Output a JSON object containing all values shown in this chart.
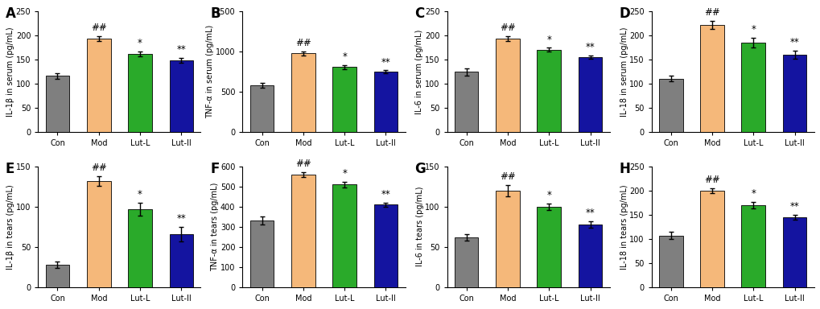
{
  "panels": [
    {
      "label": "A",
      "ylabel": "IL-1β in serum (pg/mL)",
      "ylim": [
        0,
        250
      ],
      "yticks": [
        0,
        50,
        100,
        150,
        200,
        250
      ],
      "bars": [
        116,
        193,
        162,
        148
      ],
      "errors": [
        6,
        5,
        5,
        5
      ],
      "annotations": [
        "",
        "##",
        "*",
        "**"
      ]
    },
    {
      "label": "B",
      "ylabel": "TNF-α in serum (pg/mL)",
      "ylim": [
        0,
        1500
      ],
      "yticks": [
        0,
        500,
        1000,
        1500
      ],
      "bars": [
        580,
        975,
        805,
        745
      ],
      "errors": [
        28,
        22,
        25,
        20
      ],
      "annotations": [
        "",
        "##",
        "*",
        "**"
      ]
    },
    {
      "label": "C",
      "ylabel": "IL-6 in serum (pg/mL)",
      "ylim": [
        0,
        250
      ],
      "yticks": [
        0,
        50,
        100,
        150,
        200,
        250
      ],
      "bars": [
        124,
        194,
        170,
        155
      ],
      "errors": [
        7,
        5,
        4,
        3
      ],
      "annotations": [
        "",
        "##",
        "*",
        "**"
      ]
    },
    {
      "label": "D",
      "ylabel": "IL-18 in serum (pg/mL)",
      "ylim": [
        0,
        250
      ],
      "yticks": [
        0,
        50,
        100,
        150,
        200,
        250
      ],
      "bars": [
        110,
        222,
        185,
        160
      ],
      "errors": [
        6,
        8,
        10,
        8
      ],
      "annotations": [
        "",
        "##",
        "*",
        "**"
      ]
    },
    {
      "label": "E",
      "ylabel": "IL-1β in tears (pg/mL)",
      "ylim": [
        0,
        150
      ],
      "yticks": [
        0,
        50,
        100,
        150
      ],
      "bars": [
        28,
        132,
        97,
        66
      ],
      "errors": [
        4,
        6,
        8,
        9
      ],
      "annotations": [
        "",
        "##",
        "*",
        "**"
      ]
    },
    {
      "label": "F",
      "ylabel": "TNF-α in tears (pg/mL)",
      "ylim": [
        0,
        600
      ],
      "yticks": [
        0,
        100,
        200,
        300,
        400,
        500,
        600
      ],
      "bars": [
        330,
        560,
        510,
        410
      ],
      "errors": [
        20,
        12,
        14,
        10
      ],
      "annotations": [
        "",
        "##",
        "*",
        "**"
      ]
    },
    {
      "label": "G",
      "ylabel": "IL-6 in tears (pg/mL)",
      "ylim": [
        0,
        150
      ],
      "yticks": [
        0,
        50,
        100,
        150
      ],
      "bars": [
        62,
        120,
        100,
        78
      ],
      "errors": [
        4,
        7,
        4,
        4
      ],
      "annotations": [
        "",
        "##",
        "*",
        "**"
      ]
    },
    {
      "label": "H",
      "ylabel": "IL-18 in tears (pg/mL)",
      "ylim": [
        0,
        250
      ],
      "yticks": [
        0,
        50,
        100,
        150,
        200,
        250
      ],
      "bars": [
        107,
        200,
        170,
        145
      ],
      "errors": [
        8,
        5,
        7,
        5
      ],
      "annotations": [
        "",
        "##",
        "*",
        "**"
      ]
    }
  ],
  "categories": [
    "Con",
    "Mod",
    "Lut-L",
    "Lut-II"
  ],
  "bar_colors": [
    "#7f7f7f",
    "#F5B87A",
    "#2AAA2A",
    "#1414A0"
  ],
  "background_color": "#ffffff",
  "ylabel_fontsize": 7.0,
  "tick_fontsize": 7.0,
  "annot_fontsize": 8.5,
  "panel_label_fontsize": 12
}
